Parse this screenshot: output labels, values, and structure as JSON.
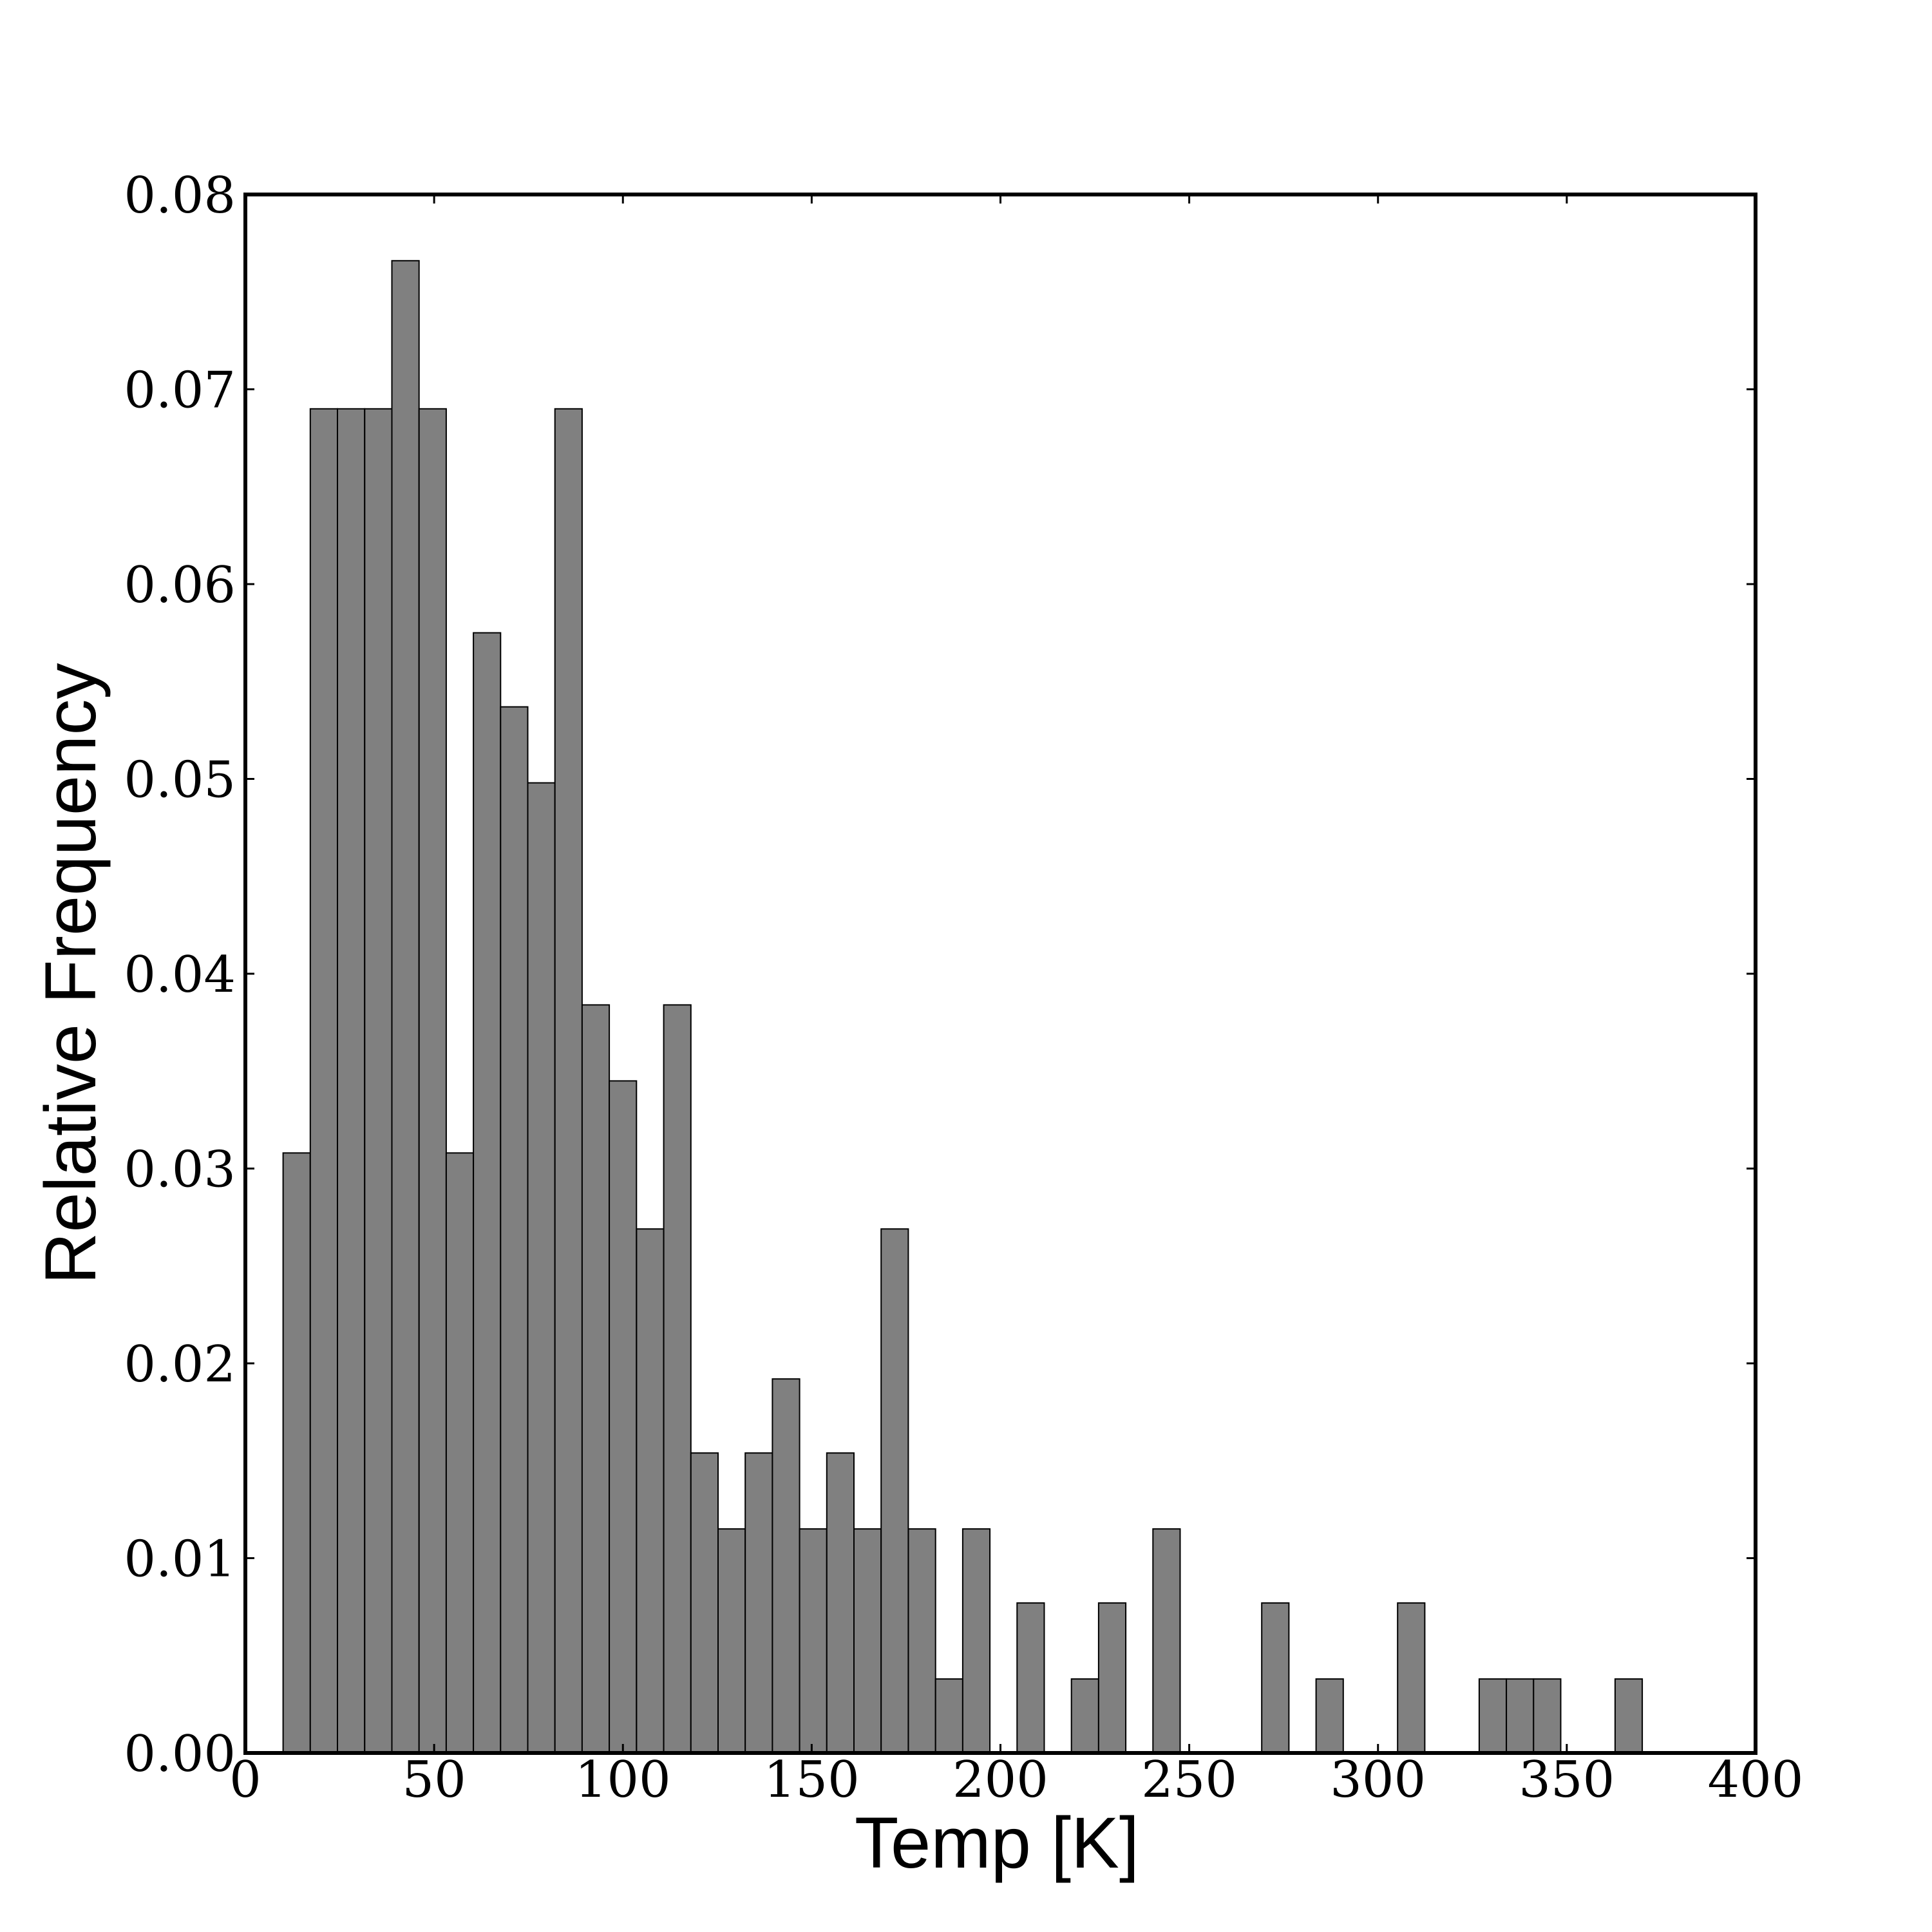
{
  "chart_data": {
    "type": "bar",
    "title": "",
    "xlabel": "Temp [K]",
    "ylabel": "Relative Frequency",
    "xlim": [
      0,
      400
    ],
    "ylim": [
      0,
      0.08
    ],
    "x_ticks": [
      "0",
      "50",
      "100",
      "150",
      "200",
      "250",
      "300",
      "350",
      "400"
    ],
    "y_ticks": [
      "0.00",
      "0.01",
      "0.02",
      "0.03",
      "0.04",
      "0.05",
      "0.06",
      "0.07",
      "0.08"
    ],
    "bin_width": 7.2,
    "bins": [
      {
        "start": 10.0,
        "value": 0.0308
      },
      {
        "start": 17.2,
        "value": 0.069
      },
      {
        "start": 24.4,
        "value": 0.069
      },
      {
        "start": 31.6,
        "value": 0.069
      },
      {
        "start": 38.8,
        "value": 0.0766
      },
      {
        "start": 46.0,
        "value": 0.069
      },
      {
        "start": 53.2,
        "value": 0.0308
      },
      {
        "start": 60.4,
        "value": 0.0575
      },
      {
        "start": 67.6,
        "value": 0.0537
      },
      {
        "start": 74.8,
        "value": 0.0498
      },
      {
        "start": 82.0,
        "value": 0.069
      },
      {
        "start": 89.2,
        "value": 0.0384
      },
      {
        "start": 96.4,
        "value": 0.0345
      },
      {
        "start": 103.6,
        "value": 0.0269
      },
      {
        "start": 110.8,
        "value": 0.0384
      },
      {
        "start": 118.0,
        "value": 0.0154
      },
      {
        "start": 125.2,
        "value": 0.0115
      },
      {
        "start": 132.4,
        "value": 0.0154
      },
      {
        "start": 139.6,
        "value": 0.0192
      },
      {
        "start": 146.8,
        "value": 0.0115
      },
      {
        "start": 154.0,
        "value": 0.0154
      },
      {
        "start": 161.2,
        "value": 0.0115
      },
      {
        "start": 168.4,
        "value": 0.0269
      },
      {
        "start": 175.6,
        "value": 0.0115
      },
      {
        "start": 182.8,
        "value": 0.0038
      },
      {
        "start": 190.0,
        "value": 0.0115
      },
      {
        "start": 204.4,
        "value": 0.0077
      },
      {
        "start": 218.8,
        "value": 0.0038
      },
      {
        "start": 226.0,
        "value": 0.0077
      },
      {
        "start": 240.4,
        "value": 0.0115
      },
      {
        "start": 269.2,
        "value": 0.0077
      },
      {
        "start": 283.6,
        "value": 0.0038
      },
      {
        "start": 305.2,
        "value": 0.0077
      },
      {
        "start": 326.8,
        "value": 0.0038
      },
      {
        "start": 334.0,
        "value": 0.0038
      },
      {
        "start": 341.2,
        "value": 0.0038
      },
      {
        "start": 362.8,
        "value": 0.0038
      }
    ],
    "bar_color": "#808080",
    "edge_color": "#000000",
    "grid": false,
    "legend": "none"
  }
}
